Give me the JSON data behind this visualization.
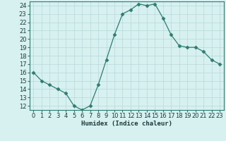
{
  "x": [
    0,
    1,
    2,
    3,
    4,
    5,
    6,
    7,
    8,
    9,
    10,
    11,
    12,
    13,
    14,
    15,
    16,
    17,
    18,
    19,
    20,
    21,
    22,
    23
  ],
  "y": [
    16,
    15,
    14.5,
    14,
    13.5,
    12,
    11.5,
    12,
    14.5,
    17.5,
    20.5,
    23,
    23.5,
    24.2,
    24,
    24.2,
    22.5,
    20.5,
    19.2,
    19,
    19,
    18.5,
    17.5,
    17
  ],
  "line_color": "#2d7d6e",
  "marker": "D",
  "marker_size": 2.5,
  "bg_color": "#d7f0f0",
  "grid_color": "#b8d8d8",
  "xlabel": "Humidex (Indice chaleur)",
  "xlim": [
    -0.5,
    23.5
  ],
  "ylim": [
    11.5,
    24.5
  ],
  "yticks": [
    12,
    13,
    14,
    15,
    16,
    17,
    18,
    19,
    20,
    21,
    22,
    23,
    24
  ],
  "xticks": [
    0,
    1,
    2,
    3,
    4,
    5,
    6,
    7,
    8,
    9,
    10,
    11,
    12,
    13,
    14,
    15,
    16,
    17,
    18,
    19,
    20,
    21,
    22,
    23
  ],
  "label_fontsize": 6.5,
  "tick_fontsize": 6
}
